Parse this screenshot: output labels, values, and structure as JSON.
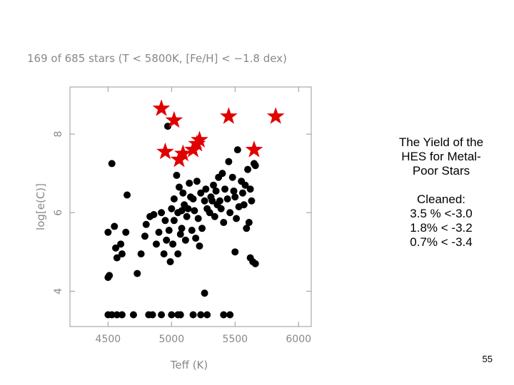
{
  "slide": {
    "text_block": {
      "title_lines": [
        "The Yield of the",
        "HES for Metal-",
        "Poor Stars"
      ],
      "cleaned_label": "Cleaned:",
      "yield_lines": [
        "3.5 % <-3.0",
        "1.8% < -3.2",
        "0.7% < -3.4"
      ]
    },
    "page_number": "55"
  },
  "chart_data": {
    "type": "scatter",
    "title": "169 of 685 stars (T < 5800K, [Fe/H] < −1.8 dex)",
    "xlabel": "Teff (K)",
    "ylabel": "log[e(C)]",
    "xlim": [
      4200,
      6100
    ],
    "ylim": [
      3.1,
      9.2
    ],
    "xticks": [
      4500,
      5000,
      5500,
      6000
    ],
    "yticks": [
      4,
      6,
      8
    ],
    "grid": false,
    "colors": {
      "circles": "#000000",
      "stars": "#e00000",
      "axis": "#999999"
    },
    "series": [
      {
        "marker": "circle",
        "points": [
          [
            4970,
            8.2
          ],
          [
            4530,
            7.25
          ],
          [
            4650,
            6.45
          ],
          [
            4500,
            5.5
          ],
          [
            4550,
            5.65
          ],
          [
            4560,
            5.1
          ],
          [
            4570,
            4.85
          ],
          [
            4600,
            5.2
          ],
          [
            4610,
            4.95
          ],
          [
            4640,
            5.5
          ],
          [
            4500,
            4.35
          ],
          [
            4510,
            4.4
          ],
          [
            4730,
            4.45
          ],
          [
            4760,
            4.95
          ],
          [
            4830,
            5.9
          ],
          [
            4860,
            5.95
          ],
          [
            4790,
            5.4
          ],
          [
            4800,
            5.7
          ],
          [
            4900,
            5.5
          ],
          [
            4920,
            6.0
          ],
          [
            4950,
            5.8
          ],
          [
            4880,
            5.2
          ],
          [
            4940,
            4.95
          ],
          [
            5000,
            6.1
          ],
          [
            5020,
            6.35
          ],
          [
            5050,
            6.0
          ],
          [
            5080,
            5.6
          ],
          [
            5100,
            6.2
          ],
          [
            5120,
            5.9
          ],
          [
            5150,
            6.4
          ],
          [
            5180,
            6.05
          ],
          [
            5200,
            6.8
          ],
          [
            5230,
            6.5
          ],
          [
            5260,
            6.3
          ],
          [
            5300,
            6.0
          ],
          [
            5330,
            6.7
          ],
          [
            5360,
            6.2
          ],
          [
            5400,
            7.0
          ],
          [
            5420,
            6.6
          ],
          [
            5450,
            7.3
          ],
          [
            5480,
            6.9
          ],
          [
            5500,
            6.4
          ],
          [
            5520,
            7.6
          ],
          [
            5550,
            6.8
          ],
          [
            5570,
            6.2
          ],
          [
            5600,
            7.1
          ],
          [
            5630,
            6.3
          ],
          [
            5650,
            7.25
          ],
          [
            5040,
            6.95
          ],
          [
            5060,
            6.65
          ],
          [
            5090,
            6.5
          ],
          [
            5140,
            6.75
          ],
          [
            5170,
            6.35
          ],
          [
            5210,
            5.85
          ],
          [
            5240,
            5.6
          ],
          [
            5270,
            6.6
          ],
          [
            5310,
            6.4
          ],
          [
            5340,
            5.9
          ],
          [
            5370,
            6.9
          ],
          [
            5390,
            6.1
          ],
          [
            5410,
            5.75
          ],
          [
            5440,
            6.35
          ],
          [
            5460,
            6.0
          ],
          [
            5490,
            6.55
          ],
          [
            5510,
            5.85
          ],
          [
            5530,
            6.15
          ],
          [
            5560,
            6.5
          ],
          [
            5590,
            5.6
          ],
          [
            5610,
            5.75
          ],
          [
            5620,
            6.6
          ],
          [
            5660,
            7.2
          ],
          [
            5580,
            6.7
          ],
          [
            5500,
            5.0
          ],
          [
            5620,
            4.85
          ],
          [
            5640,
            4.75
          ],
          [
            4980,
            5.55
          ],
          [
            5010,
            5.2
          ],
          [
            5050,
            4.95
          ],
          [
            5110,
            5.3
          ],
          [
            5160,
            5.55
          ],
          [
            5190,
            5.35
          ],
          [
            5220,
            5.15
          ],
          [
            5280,
            6.1
          ],
          [
            5320,
            6.3
          ],
          [
            5350,
            6.55
          ],
          [
            5380,
            6.3
          ],
          [
            5020,
            5.8
          ],
          [
            5070,
            5.45
          ],
          [
            4960,
            5.3
          ],
          [
            4990,
            4.75
          ],
          [
            5080,
            6.05
          ],
          [
            5130,
            6.1
          ],
          [
            5260,
            3.95
          ],
          [
            5660,
            4.7
          ],
          [
            4500,
            3.4
          ],
          [
            4530,
            3.4
          ],
          [
            4570,
            3.4
          ],
          [
            4610,
            3.4
          ],
          [
            4700,
            3.4
          ],
          [
            4820,
            3.4
          ],
          [
            4850,
            3.4
          ],
          [
            4920,
            3.4
          ],
          [
            5000,
            3.4
          ],
          [
            5050,
            3.4
          ],
          [
            5070,
            3.4
          ],
          [
            5170,
            3.4
          ],
          [
            5230,
            3.4
          ],
          [
            5280,
            3.4
          ],
          [
            5410,
            3.4
          ],
          [
            5460,
            3.4
          ]
        ]
      },
      {
        "marker": "star",
        "points": [
          [
            4920,
            8.65
          ],
          [
            5020,
            8.35
          ],
          [
            5220,
            7.85
          ],
          [
            5200,
            7.75
          ],
          [
            5170,
            7.6
          ],
          [
            5090,
            7.5
          ],
          [
            5060,
            7.35
          ],
          [
            4950,
            7.55
          ],
          [
            5450,
            8.45
          ],
          [
            5650,
            7.6
          ],
          [
            5820,
            8.45
          ]
        ]
      }
    ]
  }
}
